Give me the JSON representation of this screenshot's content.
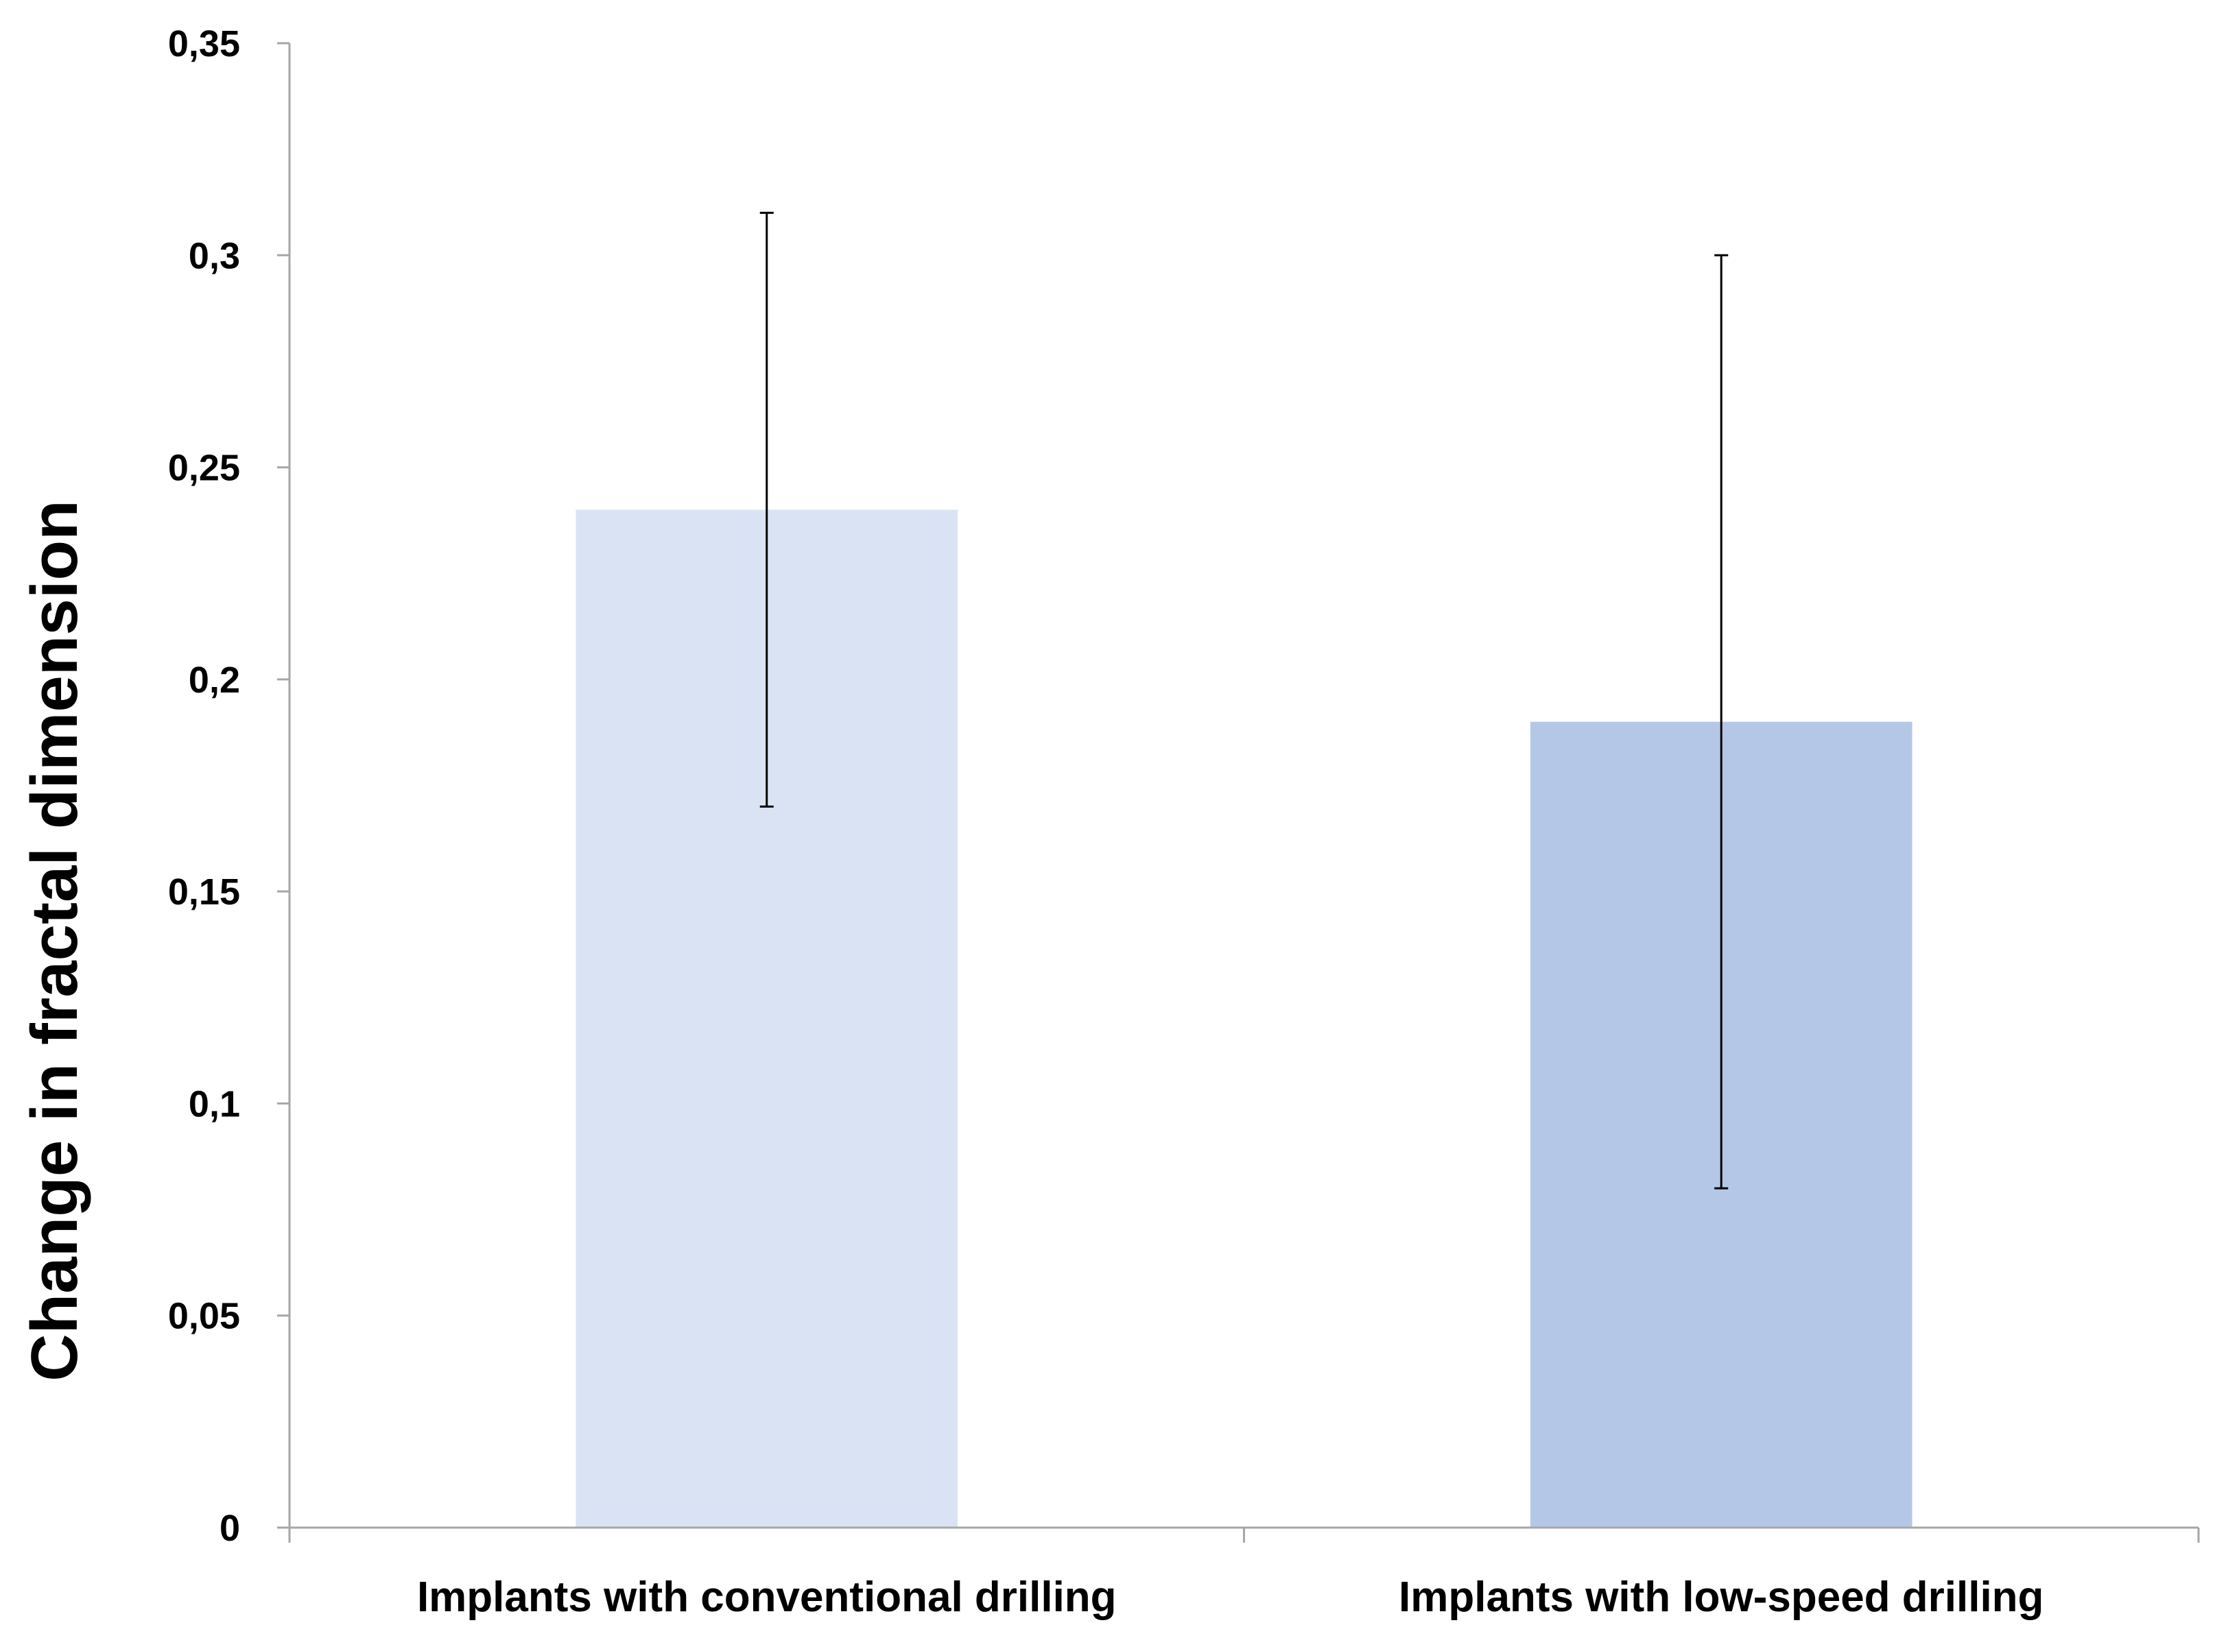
{
  "chart_data": {
    "type": "bar",
    "title": "",
    "xlabel": "",
    "ylabel": "Change in fractal dimension",
    "ylim": [
      0,
      0.35
    ],
    "grid": false,
    "legend": "none",
    "yticks": [
      0,
      0.05,
      0.1,
      0.15,
      0.2,
      0.25,
      0.3,
      0.35
    ],
    "ytick_labels": [
      "0",
      "0,05",
      "0,1",
      "0,15",
      "0,2",
      "0,25",
      "0,3",
      "0,35"
    ],
    "categories": [
      "Implants with conventional drilling",
      "Implants with low-speed drilling"
    ],
    "values": [
      0.24,
      0.19
    ],
    "error_low": [
      0.17,
      0.08
    ],
    "error_high": [
      0.31,
      0.3
    ],
    "bar_colors": [
      "#dae3f3",
      "#b4c7e7"
    ],
    "axis_color": "#a6a6a6",
    "errorbar_color": "#000000"
  }
}
